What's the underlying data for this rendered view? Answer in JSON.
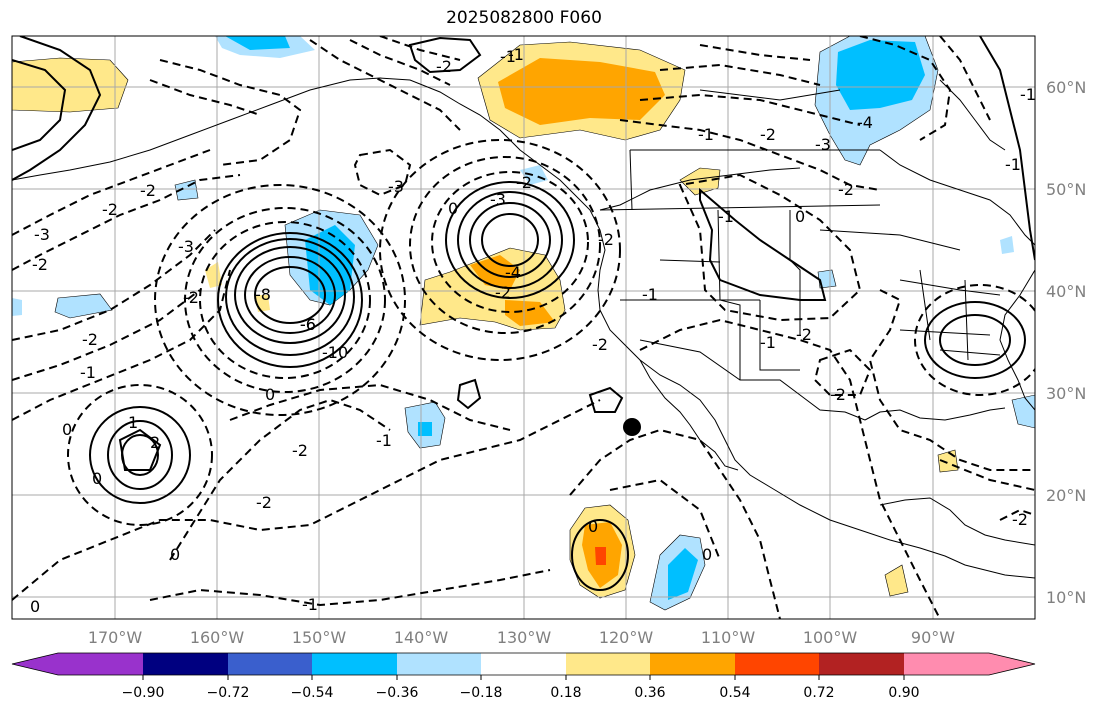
{
  "title": "2025082800 F060",
  "map": {
    "lat_labels": [
      "60°N",
      "50°N",
      "40°N",
      "30°N",
      "20°N",
      "10°N"
    ],
    "lon_labels": [
      "170°W",
      "160°W",
      "150°W",
      "140°W",
      "130°W",
      "120°W",
      "110°W",
      "100°W",
      "90°W"
    ],
    "contour_labels": [
      "-2",
      "0",
      "-1",
      "-2",
      "-6",
      "-3",
      "-2",
      "-2",
      "-3",
      "0",
      "-1",
      "-2",
      "-4",
      "-2",
      "-3",
      "-2",
      "-2",
      "-2",
      "-1",
      "-2",
      "-4",
      "-1",
      "-2",
      "-1",
      "-2",
      "-8",
      "-6",
      "-10",
      "-3",
      "0",
      "-1",
      "-2",
      "0",
      "-2",
      "-1",
      "-2",
      "-1",
      "1",
      "2",
      "0",
      "0",
      "0",
      "-2",
      "-1",
      "-1",
      "0",
      "0",
      "-1",
      "-3",
      "-2"
    ],
    "marker": "station-dot"
  },
  "colorbar": {
    "colors": [
      "#9932CC",
      "#000080",
      "#3A5FCD",
      "#00BFFF",
      "#B0E2FF",
      "#FFFFFF",
      "#FFE88A",
      "#FFA500",
      "#FF4500",
      "#B22222",
      "#FF8CAF"
    ],
    "tick_labels": [
      "−0.90",
      "−0.72",
      "−0.54",
      "−0.36",
      "−0.18",
      "0.18",
      "0.36",
      "0.54",
      "0.72",
      "0.90"
    ]
  }
}
